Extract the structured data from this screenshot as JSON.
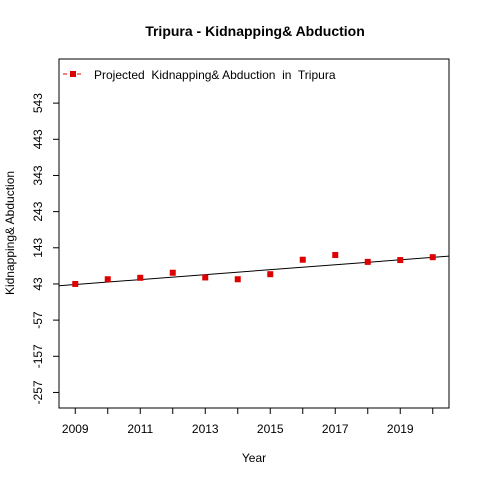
{
  "chart_data": {
    "type": "scatter",
    "title": "Tripura  -  Kidnapping& Abduction",
    "xlabel": "Year",
    "ylabel": "Kidnapping& Abduction",
    "x": [
      2009,
      2010,
      2011,
      2012,
      2013,
      2014,
      2015,
      2016,
      2017,
      2018,
      2019,
      2020
    ],
    "series": [
      {
        "name": "Projected  Kidnapping& Abduction  in  Tripura",
        "values": [
          43,
          56,
          60,
          74,
          61,
          56,
          70,
          110,
          123,
          104,
          109,
          117
        ],
        "color": "#dd0000",
        "marker": "square"
      }
    ],
    "trendline": {
      "x": [
        2008.5,
        2020.5
      ],
      "y": [
        38,
        120
      ],
      "color": "#000000"
    },
    "xticks": [
      2009,
      2011,
      2013,
      2015,
      2017,
      2019
    ],
    "xminor_ticks": [
      2010,
      2012,
      2014,
      2016,
      2018,
      2020
    ],
    "yticks": [
      -257,
      -157,
      -57,
      43,
      143,
      243,
      343,
      443,
      543
    ],
    "xlim": [
      2008.5,
      2020.5
    ],
    "ylim": [
      -300,
      665
    ],
    "legend_position": "top-left",
    "grid": false
  }
}
